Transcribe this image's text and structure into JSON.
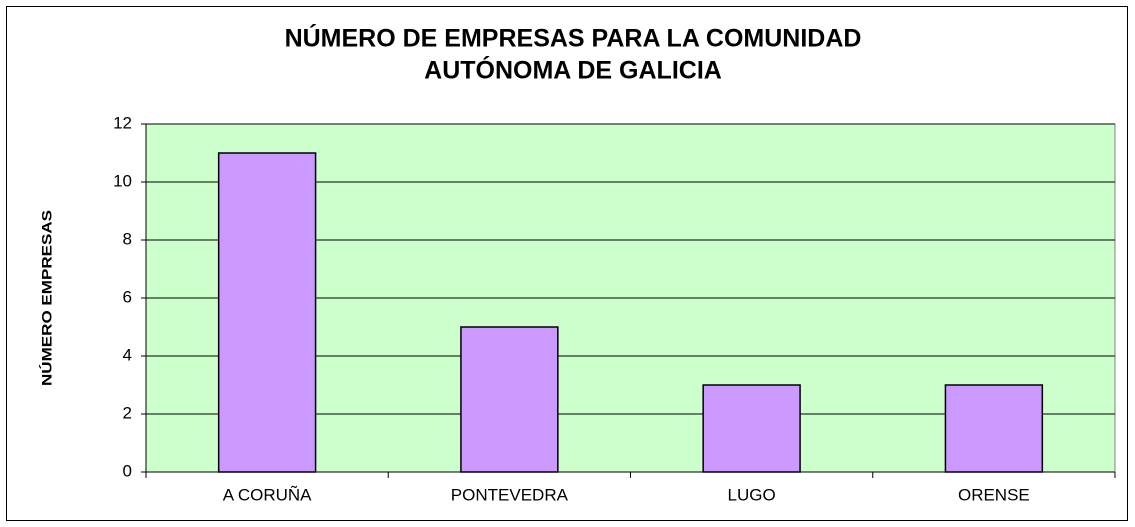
{
  "chart_data": {
    "type": "bar",
    "title": [
      "NÚMERO DE EMPRESAS PARA LA COMUNIDAD",
      "AUTÓNOMA DE GALICIA"
    ],
    "y_label": "NÚMERO EMPRESAS",
    "categories": [
      "A CORUÑA",
      "PONTEVEDRA",
      "LUGO",
      "ORENSE"
    ],
    "values": [
      11,
      5,
      3,
      3
    ],
    "color": "#cc99ff",
    "ylim": [
      0,
      12
    ],
    "yticks": [
      0,
      2,
      4,
      6,
      8,
      10,
      12
    ],
    "grid": true
  }
}
